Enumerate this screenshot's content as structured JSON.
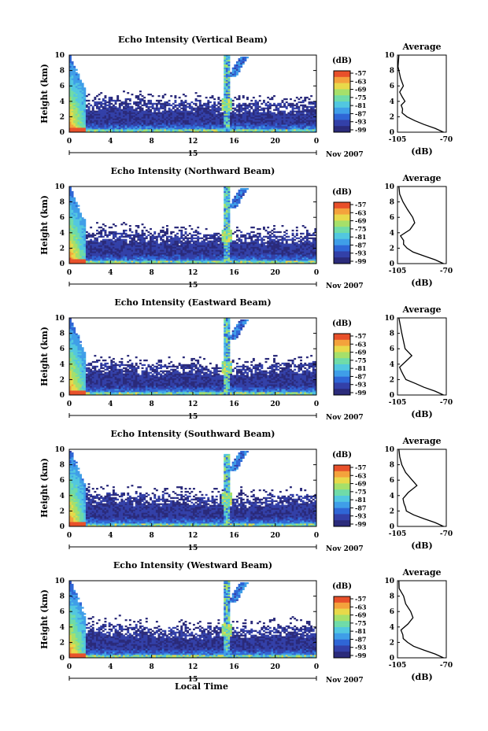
{
  "footer": {
    "xlabel": "Local Time"
  },
  "chart_data": [
    {
      "type": "heatmap",
      "title": "Echo Intensity (Vertical Beam)",
      "ylabel": "Height (km)",
      "xlim": [
        0,
        24
      ],
      "ylim": [
        0,
        10
      ],
      "xticks": [
        "0",
        "4",
        "8",
        "12",
        "16",
        "20",
        "0"
      ],
      "yticks": [
        "0",
        "2",
        "4",
        "6",
        "8",
        "10"
      ],
      "date_label": "15",
      "month_label": "Nov 2007",
      "colorbar": {
        "unit": "(dB)",
        "ticks": [
          "-57",
          "-63",
          "-69",
          "-75",
          "-81",
          "-87",
          "-93",
          "-99"
        ]
      },
      "layer_top_km": [
        4.0,
        4.3,
        4.0,
        3.9,
        3.8,
        3.9,
        4.0
      ],
      "plume": {
        "x": 15.3,
        "top_km": 10
      }
    },
    {
      "type": "line",
      "title": "Average",
      "xlabel": "(dB)",
      "xlim": [
        -105,
        -70
      ],
      "xticks": [
        "-105",
        "-70"
      ],
      "ylim": [
        0,
        10
      ],
      "yticks": [
        "0",
        "2",
        "4",
        "6",
        "8",
        "10"
      ],
      "series": [
        {
          "x": [
            -72,
            -78,
            -86,
            -93,
            -98,
            -101,
            -102,
            -103,
            -100,
            -102,
            -103,
            -101,
            -102,
            -104,
            -104
          ],
          "y": [
            0,
            0.5,
            1,
            1.5,
            2,
            2.5,
            3,
            3.5,
            4,
            4.6,
            5.2,
            6,
            7,
            8.5,
            10
          ]
        }
      ]
    },
    {
      "type": "heatmap",
      "title": "Echo Intensity (Northward Beam)",
      "ylabel": "Height (km)",
      "xlim": [
        0,
        24
      ],
      "ylim": [
        0,
        10
      ],
      "xticks": [
        "0",
        "4",
        "8",
        "12",
        "16",
        "20",
        "0"
      ],
      "yticks": [
        "0",
        "2",
        "4",
        "6",
        "8",
        "10"
      ],
      "date_label": "15",
      "month_label": "Nov 2007",
      "colorbar": {
        "unit": "(dB)",
        "ticks": [
          "-57",
          "-63",
          "-69",
          "-75",
          "-81",
          "-87",
          "-93",
          "-99"
        ]
      },
      "layer_top_km": [
        4.1,
        4.3,
        4.0,
        3.9,
        3.9,
        4.0,
        4.1
      ],
      "plume": {
        "x": 15.3,
        "top_km": 10
      }
    },
    {
      "type": "line",
      "title": "Average",
      "xlabel": "(dB)",
      "xlim": [
        -105,
        -70
      ],
      "xticks": [
        "-105",
        "-70"
      ],
      "ylim": [
        0,
        10
      ],
      "yticks": [
        "0",
        "2",
        "4",
        "6",
        "8",
        "10"
      ],
      "series": [
        {
          "x": [
            -72,
            -78,
            -86,
            -93,
            -98,
            -100,
            -101,
            -103,
            -97,
            -92,
            -95,
            -98,
            -101,
            -103,
            -104
          ],
          "y": [
            0,
            0.5,
            1,
            1.5,
            2,
            2.5,
            3,
            3.6,
            4.4,
            5.3,
            6,
            7,
            8,
            9,
            10
          ]
        }
      ]
    },
    {
      "type": "heatmap",
      "title": "Echo Intensity (Eastward Beam)",
      "ylabel": "Height (km)",
      "xlim": [
        0,
        24
      ],
      "ylim": [
        0,
        10
      ],
      "xticks": [
        "0",
        "4",
        "8",
        "12",
        "16",
        "20",
        "0"
      ],
      "yticks": [
        "0",
        "2",
        "4",
        "6",
        "8",
        "10"
      ],
      "date_label": "15",
      "month_label": "Nov 2007",
      "colorbar": {
        "unit": "(dB)",
        "ticks": [
          "-57",
          "-63",
          "-69",
          "-75",
          "-81",
          "-87",
          "-93",
          "-99"
        ]
      },
      "layer_top_km": [
        4.0,
        4.2,
        4.0,
        3.9,
        3.8,
        4.0,
        4.1
      ],
      "plume": {
        "x": 15.3,
        "top_km": 10
      }
    },
    {
      "type": "line",
      "title": "Average",
      "xlabel": "(dB)",
      "xlim": [
        -105,
        -70
      ],
      "xticks": [
        "-105",
        "-70"
      ],
      "ylim": [
        0,
        10
      ],
      "yticks": [
        "0",
        "2",
        "4",
        "6",
        "8",
        "10"
      ],
      "series": [
        {
          "x": [
            -72,
            -78,
            -86,
            -93,
            -98,
            -101,
            -102,
            -103,
            -99,
            -95,
            -99,
            -100,
            -102,
            -103,
            -104
          ],
          "y": [
            0,
            0.5,
            1,
            1.5,
            2,
            2.5,
            3,
            3.6,
            4.4,
            5.1,
            6,
            7,
            8,
            9,
            10
          ]
        }
      ]
    },
    {
      "type": "heatmap",
      "title": "Echo Intensity (Southward Beam)",
      "ylabel": "Height (km)",
      "xlim": [
        0,
        24
      ],
      "ylim": [
        0,
        10
      ],
      "xticks": [
        "0",
        "4",
        "8",
        "12",
        "16",
        "20",
        "0"
      ],
      "yticks": [
        "0",
        "2",
        "4",
        "6",
        "8",
        "10"
      ],
      "date_label": "15",
      "month_label": "Nov 2007",
      "colorbar": {
        "unit": "(dB)",
        "ticks": [
          "-57",
          "-63",
          "-69",
          "-75",
          "-81",
          "-87",
          "-93",
          "-99"
        ]
      },
      "layer_top_km": [
        4.2,
        4.3,
        4.1,
        4.0,
        3.9,
        4.0,
        4.2
      ],
      "plume": {
        "x": 15.3,
        "top_km": 9.5
      }
    },
    {
      "type": "line",
      "title": "Average",
      "xlabel": "(dB)",
      "xlim": [
        -105,
        -70
      ],
      "xticks": [
        "-105",
        "-70"
      ],
      "ylim": [
        0,
        10
      ],
      "yticks": [
        "0",
        "2",
        "4",
        "6",
        "8",
        "10"
      ],
      "series": [
        {
          "x": [
            -72,
            -78,
            -86,
            -93,
            -98,
            -100,
            -101,
            -102,
            -97,
            -92,
            -95,
            -99,
            -101,
            -103,
            -104
          ],
          "y": [
            0,
            0.5,
            1,
            1.5,
            2,
            2.5,
            3,
            3.6,
            4.4,
            5.3,
            6,
            7,
            8,
            9,
            10
          ]
        }
      ]
    },
    {
      "type": "heatmap",
      "title": "Echo Intensity (Westward Beam)",
      "ylabel": "Height (km)",
      "xlim": [
        0,
        24
      ],
      "ylim": [
        0,
        10
      ],
      "xticks": [
        "0",
        "4",
        "8",
        "12",
        "16",
        "20",
        "0"
      ],
      "yticks": [
        "0",
        "2",
        "4",
        "6",
        "8",
        "10"
      ],
      "date_label": "15",
      "month_label": "Nov 2007",
      "colorbar": {
        "unit": "(dB)",
        "ticks": [
          "-57",
          "-63",
          "-69",
          "-75",
          "-81",
          "-87",
          "-93",
          "-99"
        ]
      },
      "layer_top_km": [
        4.1,
        4.3,
        4.0,
        3.9,
        3.9,
        4.0,
        4.1
      ],
      "plume": {
        "x": 15.3,
        "top_km": 10
      }
    },
    {
      "type": "line",
      "title": "Average",
      "xlabel": "(dB)",
      "xlim": [
        -105,
        -70
      ],
      "xticks": [
        "-105",
        "-70"
      ],
      "ylim": [
        0,
        10
      ],
      "yticks": [
        "0",
        "2",
        "4",
        "6",
        "8",
        "10"
      ],
      "series": [
        {
          "x": [
            -72,
            -78,
            -86,
            -93,
            -98,
            -100,
            -101,
            -102,
            -97,
            -93,
            -96,
            -99,
            -101,
            -103,
            -104
          ],
          "y": [
            0,
            0.5,
            1,
            1.5,
            2,
            2.5,
            3,
            3.6,
            4.4,
            5.2,
            6,
            7,
            8,
            9,
            10
          ]
        }
      ]
    }
  ]
}
